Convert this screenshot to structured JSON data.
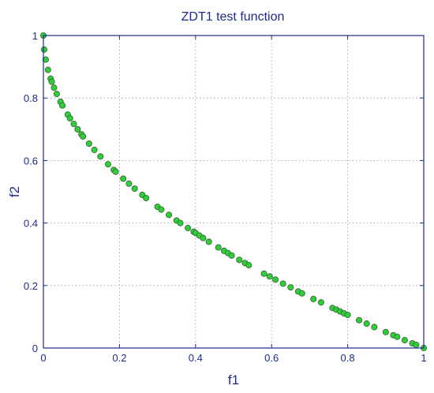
{
  "chart_data": {
    "type": "scatter",
    "title": "ZDT1 test function",
    "xlabel": "f1",
    "ylabel": "f2",
    "xlim": [
      0,
      1
    ],
    "ylim": [
      0,
      1
    ],
    "grid": true,
    "legend": "none",
    "xticks": [
      "0",
      "0.2",
      "0.4",
      "0.6",
      "0.8",
      "1"
    ],
    "yticks": [
      "0",
      "0.2",
      "0.4",
      "0.6",
      "0.8",
      "1"
    ],
    "marker_fill": "#2fcf3a",
    "marker_edge": "#3c6b3c",
    "axis_color": "#1f2a8c",
    "series": [
      {
        "x": [
          0.0,
          0.002,
          0.006,
          0.012,
          0.019,
          0.022,
          0.028,
          0.035,
          0.045,
          0.05,
          0.064,
          0.07,
          0.08,
          0.09,
          0.1,
          0.104,
          0.12,
          0.134,
          0.15,
          0.17,
          0.185,
          0.19,
          0.21,
          0.225,
          0.24,
          0.26,
          0.27,
          0.3,
          0.31,
          0.33,
          0.35,
          0.36,
          0.38,
          0.395,
          0.4,
          0.41,
          0.42,
          0.435,
          0.46,
          0.475,
          0.485,
          0.495,
          0.515,
          0.53,
          0.54,
          0.58,
          0.595,
          0.61,
          0.63,
          0.65,
          0.67,
          0.68,
          0.71,
          0.73,
          0.76,
          0.77,
          0.78,
          0.79,
          0.8,
          0.83,
          0.85,
          0.87,
          0.9,
          0.92,
          0.93,
          0.95,
          0.97,
          0.98,
          1.0
        ],
        "y": [
          1.0,
          0.955,
          0.923,
          0.89,
          0.862,
          0.852,
          0.833,
          0.813,
          0.788,
          0.776,
          0.747,
          0.735,
          0.717,
          0.7,
          0.684,
          0.677,
          0.654,
          0.634,
          0.613,
          0.588,
          0.57,
          0.564,
          0.542,
          0.526,
          0.51,
          0.49,
          0.48,
          0.452,
          0.443,
          0.426,
          0.408,
          0.4,
          0.384,
          0.372,
          0.368,
          0.36,
          0.352,
          0.34,
          0.322,
          0.311,
          0.304,
          0.296,
          0.282,
          0.272,
          0.265,
          0.238,
          0.229,
          0.219,
          0.206,
          0.194,
          0.181,
          0.175,
          0.157,
          0.146,
          0.128,
          0.123,
          0.117,
          0.111,
          0.106,
          0.089,
          0.078,
          0.067,
          0.051,
          0.041,
          0.036,
          0.025,
          0.015,
          0.01,
          0.0
        ]
      }
    ]
  }
}
